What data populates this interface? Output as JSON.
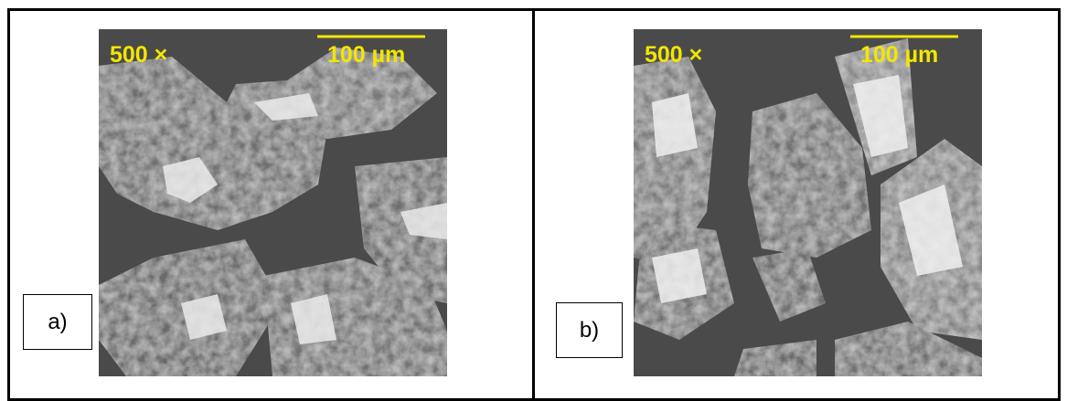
{
  "panels": [
    {
      "label": "a)",
      "magnification": "500 ×",
      "scale_bar": "100 µm"
    },
    {
      "label": "b)",
      "magnification": "500 ×",
      "scale_bar": "100 µm"
    }
  ]
}
